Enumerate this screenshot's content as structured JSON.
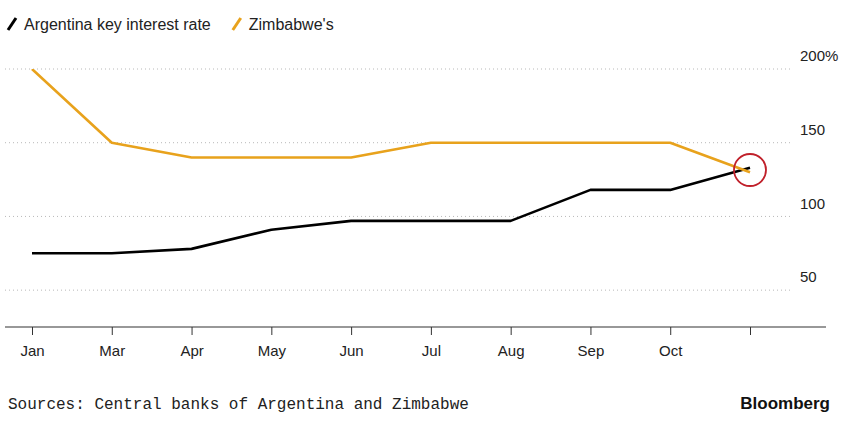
{
  "chart_data": {
    "type": "line",
    "categories": [
      "Jan",
      "Mar",
      "Apr",
      "May",
      "Jun",
      "Jul",
      "Aug",
      "Sep",
      "Oct",
      null
    ],
    "series": [
      {
        "name": "Argentina key interest rate",
        "color": "#000000",
        "values": [
          75,
          75,
          78,
          91,
          97,
          97,
          97,
          118,
          118,
          133
        ]
      },
      {
        "name": "Zimbabwe's",
        "color": "#e8a21c",
        "values": [
          200,
          150,
          140,
          140,
          140,
          150,
          150,
          150,
          150,
          130
        ]
      }
    ],
    "ylim": [
      25,
      200
    ],
    "yticks": [
      50,
      100,
      150,
      {
        "value": 200,
        "label": "200%"
      }
    ],
    "grid": true,
    "legend": "top-left",
    "source": "Sources: Central banks of Argentina and Zimbabwe",
    "credit": "Bloomberg"
  }
}
